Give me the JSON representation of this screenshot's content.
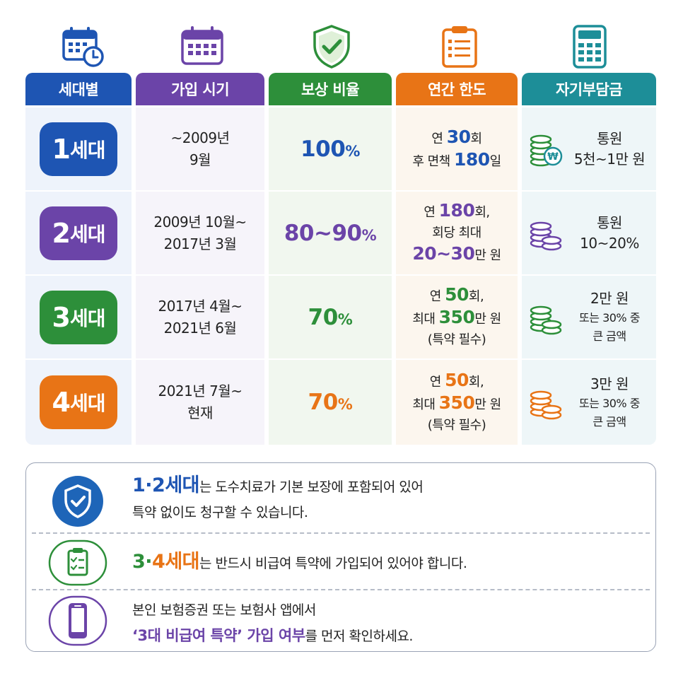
{
  "colors": {
    "blue": "#1e55b3",
    "purple": "#6b44a8",
    "green": "#2d8f3a",
    "orange": "#e87416",
    "teal": "#1d8e98"
  },
  "icons": [
    "calendar-clock-icon",
    "calendar-icon",
    "shield-check-icon",
    "clipboard-list-icon",
    "calculator-icon"
  ],
  "headers": [
    "세대별",
    "가입 시기",
    "보상 비율",
    "연간 한도",
    "자기부담금"
  ],
  "rows": [
    {
      "gen_num": "1",
      "gen_suffix": "세대",
      "period_l1": "~2009년",
      "period_l2": "9월",
      "rate": "100",
      "rate_unit": "%",
      "limit_l1_pre": "연 ",
      "limit_l1_num": "30",
      "limit_l1_post": "회",
      "limit_l2_pre": "후 면책 ",
      "limit_l2_num": "180",
      "limit_l2_post": "일",
      "ded_l1": "통원",
      "ded_l2": "5천~1만 원"
    },
    {
      "gen_num": "2",
      "gen_suffix": "세대",
      "period_l1": "2009년 10월~",
      "period_l2": "2017년 3월",
      "rate": "80~90",
      "rate_unit": "%",
      "limit_l1_pre": "연 ",
      "limit_l1_num": "180",
      "limit_l1_post": "회,",
      "limit_l2": "회당 최대",
      "limit_l3_num": "20~30",
      "limit_l3_post": "만 원",
      "ded_l1": "통원",
      "ded_l2": "10~20%"
    },
    {
      "gen_num": "3",
      "gen_suffix": "세대",
      "period_l1": "2017년 4월~",
      "period_l2": "2021년 6월",
      "rate": "70",
      "rate_unit": "%",
      "limit_l1_pre": "연 ",
      "limit_l1_num": "50",
      "limit_l1_post": "회,",
      "limit_l2_pre": "최대 ",
      "limit_l2_num": "350",
      "limit_l2_post": "만 원",
      "limit_l3": "(특약 필수)",
      "ded_l1": "2만 원",
      "ded_l2": "또는 30% 중",
      "ded_l3": "큰 금액"
    },
    {
      "gen_num": "4",
      "gen_suffix": "세대",
      "period_l1": "2021년 7월~",
      "period_l2": "현재",
      "rate": "70",
      "rate_unit": "%",
      "limit_l1_pre": "연 ",
      "limit_l1_num": "50",
      "limit_l1_post": "회,",
      "limit_l2_pre": "최대 ",
      "limit_l2_num": "350",
      "limit_l2_post": "만 원",
      "limit_l3": "(특약 필수)",
      "ded_l1": "3만 원",
      "ded_l2": "또는 30% 중",
      "ded_l3": "큰 금액"
    }
  ],
  "notes": [
    {
      "icon": "shield-check-icon",
      "highlight": "1·2세대",
      "l1_rest": "는 도수치료가 기본 보장에 포함되어 있어",
      "l2": "특약 없이도 청구할 수 있습니다."
    },
    {
      "icon": "clipboard-check-icon",
      "highlight_a": "3·",
      "highlight_b": "4세대",
      "rest": "는 반드시 비급여 특약에 가입되어 있어야 합니다."
    },
    {
      "icon": "smartphone-icon",
      "l1": "본인 보험증권 또는 보험사 앱에서",
      "l2_highlight": "‘3대 비급여 특약’ 가입 여부",
      "l2_rest": "를 먼저 확인하세요."
    }
  ]
}
